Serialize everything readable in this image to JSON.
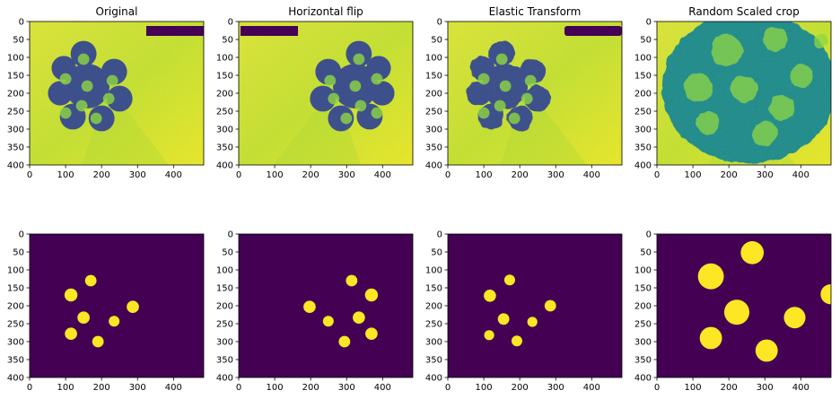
{
  "chart_data": [
    {
      "type": "heatmap",
      "title": "Original",
      "kind": "image",
      "colormap": "viridis",
      "xlim": [
        0,
        484
      ],
      "ylim": [
        400,
        0
      ],
      "xticks": [
        0,
        100,
        200,
        300,
        400
      ],
      "yticks": [
        0,
        50,
        100,
        150,
        200,
        250,
        300,
        350,
        400
      ],
      "row": 0
    },
    {
      "type": "heatmap",
      "title": "Horizontal flip",
      "kind": "image",
      "colormap": "viridis",
      "xlim": [
        0,
        484
      ],
      "ylim": [
        400,
        0
      ],
      "xticks": [
        0,
        100,
        200,
        300,
        400
      ],
      "yticks": [
        0,
        50,
        100,
        150,
        200,
        250,
        300,
        350,
        400
      ],
      "row": 0
    },
    {
      "type": "heatmap",
      "title": "Elastic Transform",
      "kind": "image",
      "colormap": "viridis",
      "xlim": [
        0,
        484
      ],
      "ylim": [
        400,
        0
      ],
      "xticks": [
        0,
        100,
        200,
        300,
        400
      ],
      "yticks": [
        0,
        50,
        100,
        150,
        200,
        250,
        300,
        350,
        400
      ],
      "row": 0
    },
    {
      "type": "heatmap",
      "title": "Random Scaled crop",
      "kind": "image",
      "colormap": "viridis",
      "xlim": [
        0,
        484
      ],
      "ylim": [
        400,
        0
      ],
      "xticks": [
        0,
        100,
        200,
        300,
        400
      ],
      "yticks": [
        0,
        50,
        100,
        150,
        200,
        250,
        300,
        350,
        400
      ],
      "row": 0
    },
    {
      "type": "heatmap",
      "title": "",
      "kind": "mask",
      "colormap": "viridis",
      "xlim": [
        0,
        484
      ],
      "ylim": [
        400,
        0
      ],
      "xticks": [
        0,
        100,
        200,
        300,
        400
      ],
      "yticks": [
        0,
        50,
        100,
        150,
        200,
        250,
        300,
        350,
        400
      ],
      "row": 1,
      "blobs": [
        {
          "x": 170,
          "y": 130,
          "r": 16
        },
        {
          "x": 115,
          "y": 170,
          "r": 18
        },
        {
          "x": 150,
          "y": 233,
          "r": 17
        },
        {
          "x": 287,
          "y": 203,
          "r": 17
        },
        {
          "x": 235,
          "y": 243,
          "r": 15
        },
        {
          "x": 115,
          "y": 278,
          "r": 17
        },
        {
          "x": 190,
          "y": 300,
          "r": 16
        }
      ]
    },
    {
      "type": "heatmap",
      "title": "",
      "kind": "mask",
      "colormap": "viridis",
      "xlim": [
        0,
        484
      ],
      "ylim": [
        400,
        0
      ],
      "xticks": [
        0,
        100,
        200,
        300,
        400
      ],
      "yticks": [
        0,
        50,
        100,
        150,
        200,
        250,
        300,
        350,
        400
      ],
      "row": 1,
      "blobs": [
        {
          "x": 314,
          "y": 130,
          "r": 16
        },
        {
          "x": 369,
          "y": 170,
          "r": 18
        },
        {
          "x": 334,
          "y": 233,
          "r": 17
        },
        {
          "x": 197,
          "y": 203,
          "r": 17
        },
        {
          "x": 249,
          "y": 243,
          "r": 15
        },
        {
          "x": 369,
          "y": 278,
          "r": 17
        },
        {
          "x": 294,
          "y": 300,
          "r": 16
        }
      ]
    },
    {
      "type": "heatmap",
      "title": "",
      "kind": "mask",
      "colormap": "viridis",
      "xlim": [
        0,
        484
      ],
      "ylim": [
        400,
        0
      ],
      "xticks": [
        0,
        100,
        200,
        300,
        400
      ],
      "yticks": [
        0,
        50,
        100,
        150,
        200,
        250,
        300,
        350,
        400
      ],
      "row": 1,
      "blobs": [
        {
          "x": 172,
          "y": 128,
          "r": 15
        },
        {
          "x": 117,
          "y": 172,
          "r": 17
        },
        {
          "x": 155,
          "y": 237,
          "r": 16
        },
        {
          "x": 285,
          "y": 200,
          "r": 16
        },
        {
          "x": 235,
          "y": 245,
          "r": 14
        },
        {
          "x": 115,
          "y": 282,
          "r": 14
        },
        {
          "x": 192,
          "y": 298,
          "r": 15
        }
      ]
    },
    {
      "type": "heatmap",
      "title": "",
      "kind": "mask",
      "colormap": "viridis",
      "xlim": [
        0,
        484
      ],
      "ylim": [
        400,
        0
      ],
      "xticks": [
        0,
        100,
        200,
        300,
        400
      ],
      "yticks": [
        0,
        50,
        100,
        150,
        200,
        250,
        300,
        350,
        400
      ],
      "row": 1,
      "blobs": [
        {
          "x": 265,
          "y": 52,
          "r": 32
        },
        {
          "x": 150,
          "y": 118,
          "r": 36
        },
        {
          "x": 222,
          "y": 218,
          "r": 35
        },
        {
          "x": 483,
          "y": 168,
          "r": 28
        },
        {
          "x": 383,
          "y": 233,
          "r": 30
        },
        {
          "x": 150,
          "y": 290,
          "r": 31
        },
        {
          "x": 305,
          "y": 325,
          "r": 31
        }
      ]
    }
  ]
}
